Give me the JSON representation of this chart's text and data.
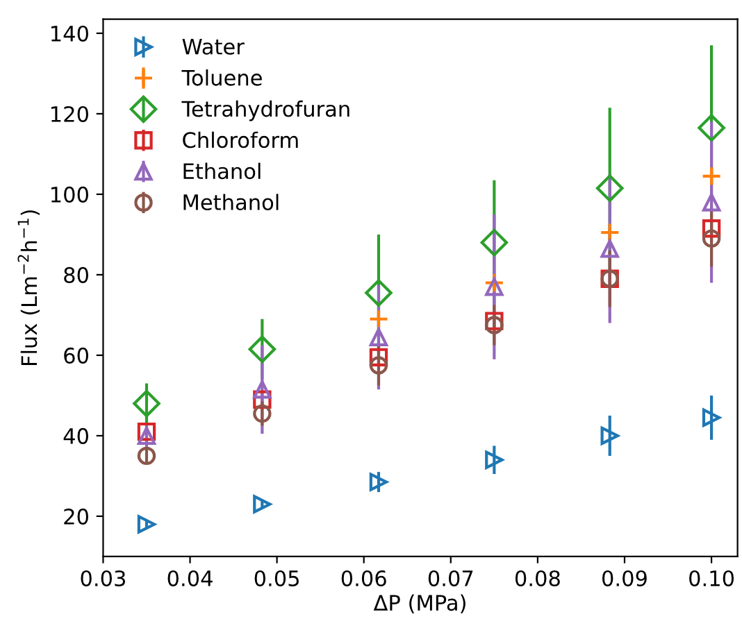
{
  "chart_data": {
    "type": "scatter",
    "xlabel": "ΔP (MPa)",
    "ylabel": "Flux (Lm$^{−2}$h$^{−1}$)",
    "x": [
      0.035,
      0.0483,
      0.0617,
      0.075,
      0.0883,
      0.1
    ],
    "xlim": [
      0.03,
      0.103
    ],
    "ylim": [
      10,
      143.5
    ],
    "xticks": [
      {
        "value": 0.03,
        "label": "0.03"
      },
      {
        "value": 0.04,
        "label": "0.04"
      },
      {
        "value": 0.05,
        "label": "0.05"
      },
      {
        "value": 0.06,
        "label": "0.06"
      },
      {
        "value": 0.07,
        "label": "0.07"
      },
      {
        "value": 0.08,
        "label": "0.08"
      },
      {
        "value": 0.09,
        "label": "0.09"
      },
      {
        "value": 0.1,
        "label": "0.10"
      }
    ],
    "yticks": [
      20,
      40,
      60,
      80,
      100,
      120,
      140
    ],
    "legend": "top left",
    "grid": false,
    "series": [
      {
        "name": "Water",
        "color": "#1f77b4",
        "marker": "triangle_right",
        "values": [
          18,
          23,
          28.5,
          34,
          40,
          44.5
        ],
        "errors": [
          1,
          1,
          2.5,
          3.5,
          5,
          5.5
        ]
      },
      {
        "name": "Toluene",
        "color": "#ff7f0e",
        "marker": "cross",
        "values": [
          null,
          null,
          69,
          78,
          90.5,
          104.5
        ],
        "errors": [
          null,
          null,
          2,
          2,
          2,
          2
        ]
      },
      {
        "name": "Tetrahydrofuran",
        "color": "#2ca02c",
        "marker": "diamond",
        "values": [
          48,
          61.5,
          75.5,
          88,
          101.5,
          116.5
        ],
        "errors": [
          5,
          7.5,
          14.5,
          15.5,
          20,
          20.5
        ]
      },
      {
        "name": "Chloroform",
        "color": "#d62728",
        "marker": "square",
        "values": [
          41,
          49,
          59.5,
          68.5,
          79,
          91.5
        ],
        "errors": [
          2,
          2,
          2,
          2,
          2,
          2
        ]
      },
      {
        "name": "Ethanol",
        "color": "#9467bd",
        "marker": "triangle",
        "values": [
          40,
          51.5,
          64.5,
          77,
          86.5,
          98
        ],
        "errors": [
          3,
          11,
          13,
          18,
          18.5,
          20
        ]
      },
      {
        "name": "Methanol",
        "color": "#8c564b",
        "marker": "circle",
        "values": [
          35,
          45.5,
          57.5,
          67.5,
          79,
          89
        ],
        "errors": [
          2,
          3,
          5,
          5,
          7,
          7
        ]
      }
    ]
  }
}
